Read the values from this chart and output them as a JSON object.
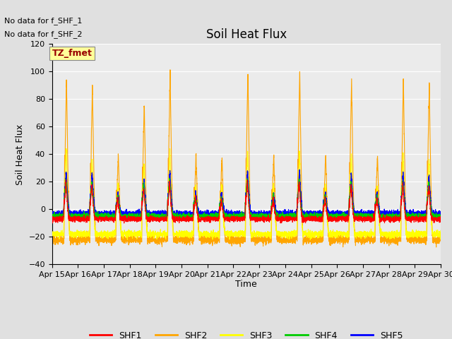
{
  "title": "Soil Heat Flux",
  "ylabel": "Soil Heat Flux",
  "xlabel": "Time",
  "ylim": [
    -40,
    120
  ],
  "yticks": [
    -40,
    -20,
    0,
    20,
    40,
    60,
    80,
    100,
    120
  ],
  "n_days": 15,
  "legend_labels": [
    "SHF1",
    "SHF2",
    "SHF3",
    "SHF4",
    "SHF5"
  ],
  "legend_colors": [
    "#FF0000",
    "#FFA500",
    "#FFFF00",
    "#00CC00",
    "#0000FF"
  ],
  "annotation_text1": "No data for f_SHF_1",
  "annotation_text2": "No data for f_SHF_2",
  "box_label": "TZ_fmet",
  "box_color": "#FFFF99",
  "box_text_color": "#990000",
  "background_color": "#E0E0E0",
  "plot_bg_color": "#EBEBEB",
  "grid_color": "#FFFFFF",
  "title_fontsize": 12,
  "label_fontsize": 9,
  "tick_fontsize": 8,
  "annotation_fontsize": 8
}
